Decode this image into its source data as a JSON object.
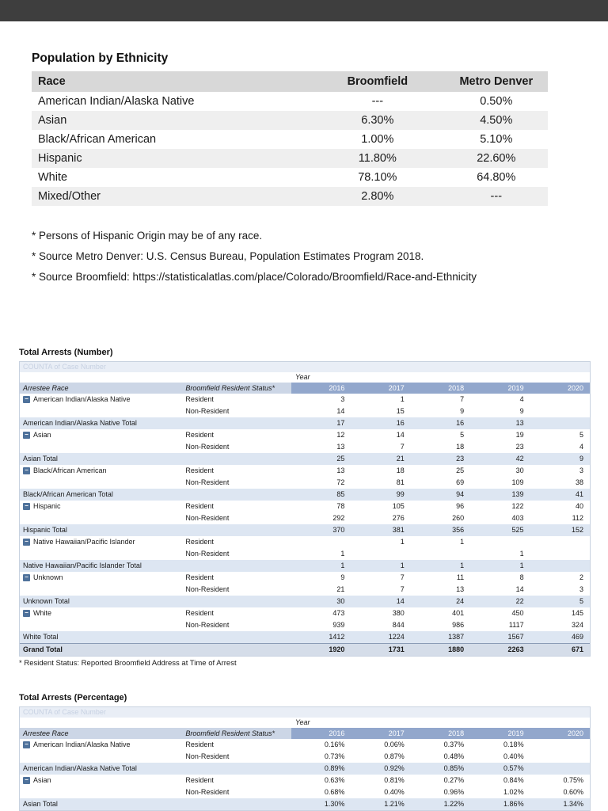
{
  "colors": {
    "toolbar": "#3e3e3e",
    "eth_header_bg": "#d8d8d8",
    "eth_alt_row_bg": "#efefef",
    "pivot_year_header_bg": "#92a7cc",
    "pivot_label_header_bg": "#ccd6e6",
    "pivot_total_row_bg": "#dde6f2",
    "pivot_grand_row_bg": "#d5dde9"
  },
  "ethnicity": {
    "title": "Population by Ethnicity",
    "columns": [
      "Race",
      "Broomfield",
      "Metro Denver"
    ],
    "rows": [
      [
        "American Indian/Alaska Native",
        "---",
        "0.50%"
      ],
      [
        "Asian",
        "6.30%",
        "4.50%"
      ],
      [
        "Black/African American",
        "1.00%",
        "5.10%"
      ],
      [
        "Hispanic",
        "11.80%",
        "22.60%"
      ],
      [
        "White",
        "78.10%",
        "64.80%"
      ],
      [
        "Mixed/Other",
        "2.80%",
        "---"
      ]
    ],
    "footnotes": [
      "* Persons of Hispanic Origin may be of any race.",
      "* Source Metro Denver: U.S. Census Bureau, Population Estimates Program 2018.",
      "* Source Broomfield: https://statisticalatlas.com/place/Colorado/Broomfield/Race-and-Ethnicity"
    ]
  },
  "arrests_number": {
    "title": "Total Arrests (Number)",
    "counta_label": "COUNTA of Case Number",
    "year_label": "Year",
    "col1": "Arrestee Race",
    "col2": "Broomfield Resident Status*",
    "years": [
      "2016",
      "2017",
      "2018",
      "2019",
      "2020"
    ],
    "rows": [
      {
        "t": "g",
        "race": "American Indian/Alaska Native",
        "status": "Resident",
        "v": [
          "3",
          "1",
          "7",
          "4",
          ""
        ]
      },
      {
        "t": "s",
        "status": "Non-Resident",
        "v": [
          "14",
          "15",
          "9",
          "9",
          ""
        ]
      },
      {
        "t": "t",
        "label": "American Indian/Alaska Native Total",
        "v": [
          "17",
          "16",
          "16",
          "13",
          ""
        ]
      },
      {
        "t": "g",
        "race": "Asian",
        "status": "Resident",
        "v": [
          "12",
          "14",
          "5",
          "19",
          "5"
        ]
      },
      {
        "t": "s",
        "status": "Non-Resident",
        "v": [
          "13",
          "7",
          "18",
          "23",
          "4"
        ]
      },
      {
        "t": "t",
        "label": "Asian Total",
        "v": [
          "25",
          "21",
          "23",
          "42",
          "9"
        ]
      },
      {
        "t": "g",
        "race": "Black/African American",
        "status": "Resident",
        "v": [
          "13",
          "18",
          "25",
          "30",
          "3"
        ]
      },
      {
        "t": "s",
        "status": "Non-Resident",
        "v": [
          "72",
          "81",
          "69",
          "109",
          "38"
        ]
      },
      {
        "t": "t",
        "label": "Black/African American Total",
        "v": [
          "85",
          "99",
          "94",
          "139",
          "41"
        ]
      },
      {
        "t": "g",
        "race": "Hispanic",
        "status": "Resident",
        "v": [
          "78",
          "105",
          "96",
          "122",
          "40"
        ]
      },
      {
        "t": "s",
        "status": "Non-Resident",
        "v": [
          "292",
          "276",
          "260",
          "403",
          "112"
        ]
      },
      {
        "t": "t",
        "label": "Hispanic Total",
        "v": [
          "370",
          "381",
          "356",
          "525",
          "152"
        ]
      },
      {
        "t": "g",
        "race": "Native Hawaiian/Pacific Islander",
        "status": "Resident",
        "v": [
          "",
          "1",
          "1",
          "",
          ""
        ]
      },
      {
        "t": "s",
        "status": "Non-Resident",
        "v": [
          "1",
          "",
          "",
          "1",
          ""
        ]
      },
      {
        "t": "t",
        "label": "Native Hawaiian/Pacific Islander Total",
        "v": [
          "1",
          "1",
          "1",
          "1",
          ""
        ]
      },
      {
        "t": "g",
        "race": "Unknown",
        "status": "Resident",
        "v": [
          "9",
          "7",
          "11",
          "8",
          "2"
        ]
      },
      {
        "t": "s",
        "status": "Non-Resident",
        "v": [
          "21",
          "7",
          "13",
          "14",
          "3"
        ]
      },
      {
        "t": "t",
        "label": "Unknown Total",
        "v": [
          "30",
          "14",
          "24",
          "22",
          "5"
        ]
      },
      {
        "t": "g",
        "race": "White",
        "status": "Resident",
        "v": [
          "473",
          "380",
          "401",
          "450",
          "145"
        ]
      },
      {
        "t": "s",
        "status": "Non-Resident",
        "v": [
          "939",
          "844",
          "986",
          "1117",
          "324"
        ]
      },
      {
        "t": "t",
        "label": "White Total",
        "v": [
          "1412",
          "1224",
          "1387",
          "1567",
          "469"
        ]
      },
      {
        "t": "gr",
        "label": "Grand Total",
        "v": [
          "1920",
          "1731",
          "1880",
          "2263",
          "671"
        ]
      }
    ],
    "footnote": "* Resident Status: Reported Broomfield Address at Time of Arrest"
  },
  "arrests_percentage": {
    "title": "Total Arrests (Percentage)",
    "counta_label": "COUNTA of Case Number",
    "year_label": "Year",
    "col1": "Arrestee Race",
    "col2": "Broomfield Resident Status*",
    "years": [
      "2016",
      "2017",
      "2018",
      "2019",
      "2020"
    ],
    "rows": [
      {
        "t": "g",
        "race": "American Indian/Alaska Native",
        "status": "Resident",
        "v": [
          "0.16%",
          "0.06%",
          "0.37%",
          "0.18%",
          ""
        ]
      },
      {
        "t": "s",
        "status": "Non-Resident",
        "v": [
          "0.73%",
          "0.87%",
          "0.48%",
          "0.40%",
          ""
        ]
      },
      {
        "t": "t",
        "label": "American Indian/Alaska Native Total",
        "v": [
          "0.89%",
          "0.92%",
          "0.85%",
          "0.57%",
          ""
        ]
      },
      {
        "t": "g",
        "race": "Asian",
        "status": "Resident",
        "v": [
          "0.63%",
          "0.81%",
          "0.27%",
          "0.84%",
          "0.75%"
        ]
      },
      {
        "t": "s",
        "status": "Non-Resident",
        "v": [
          "0.68%",
          "0.40%",
          "0.96%",
          "1.02%",
          "0.60%"
        ]
      },
      {
        "t": "t",
        "label": "Asian Total",
        "v": [
          "1.30%",
          "1.21%",
          "1.22%",
          "1.86%",
          "1.34%"
        ]
      }
    ]
  }
}
